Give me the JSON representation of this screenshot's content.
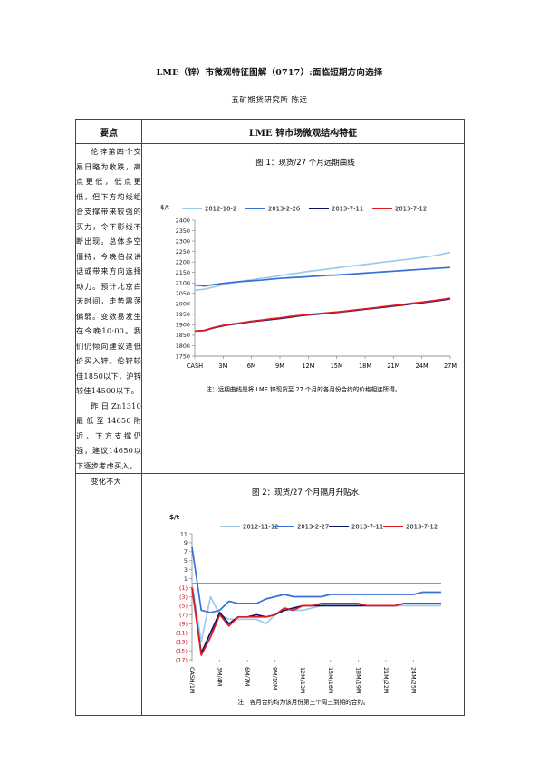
{
  "doc": {
    "title": "LME（锌）市微观特征图解（0717）:面临短期方向选择",
    "author": "五矿期货研究所    陈远"
  },
  "table": {
    "header_left": "要点",
    "header_right": "LME 锌市场微观结构特征",
    "row1_left_p1": "伦锌第四个交易日略为收跌，高点更低，低点更低，但下方均线组合支撑带来较强的买力，令下影线不断出现。总体多空僵持，今晚伯叔讲话或带来方向选择动力。预计北京白天时间，走势震荡偏弱。变数易发生在今晚10:00。我们仍倾向建议逢低价买入锌。伦锌较佳1850以下，沪锌较佳14500以下。",
    "row1_left_p2": "昨日Zn1310最低至14650附近，下方支撑仍强，建议14650以下逐步考虑买入。",
    "row2_left": "变化不大"
  },
  "chart1": {
    "title": "图 1：现货/27 个月远期曲线",
    "note": "注：远期曲线是将 LME 锌现货至 27 个月的各月份合约的价格相连所得。"
  },
  "chart2": {
    "title": "图 2：现货/27 个月隔月升贴水",
    "note": "注：各月合约均为该月份第三个周三到期的合约。"
  },
  "chart_data": [
    {
      "type": "line",
      "title": "图 1：现货/27 个月远期曲线",
      "ylabel": "$/t",
      "ylim": [
        1750,
        2400
      ],
      "yticks": [
        1750,
        1800,
        1850,
        1900,
        1950,
        2000,
        2050,
        2100,
        2150,
        2200,
        2250,
        2300,
        2350,
        2400
      ],
      "x": [
        0,
        1,
        2,
        3,
        4,
        5,
        6,
        7,
        8,
        9,
        10,
        11,
        12,
        13,
        14,
        15,
        16,
        17,
        18,
        19,
        20,
        21,
        22,
        23,
        24,
        25,
        26,
        27
      ],
      "xticks": [
        0,
        3,
        6,
        9,
        12,
        15,
        18,
        21,
        24,
        27
      ],
      "xtick_labels": [
        "CASH",
        "3M",
        "6M",
        "9M",
        "12M",
        "15M",
        "18M",
        "21M",
        "24M",
        "27M"
      ],
      "grid": false,
      "legend": "top",
      "series": [
        {
          "name": "2012-10-2",
          "color": "#9ecae9",
          "values": [
            2065,
            2070,
            2080,
            2092,
            2100,
            2108,
            2115,
            2122,
            2128,
            2135,
            2142,
            2148,
            2155,
            2160,
            2166,
            2172,
            2178,
            2183,
            2188,
            2194,
            2200,
            2205,
            2210,
            2216,
            2222,
            2228,
            2236,
            2246
          ]
        },
        {
          "name": "2013-2-26",
          "color": "#3b6fd8",
          "values": [
            2090,
            2085,
            2092,
            2098,
            2103,
            2107,
            2110,
            2113,
            2118,
            2122,
            2125,
            2127,
            2130,
            2133,
            2136,
            2138,
            2141,
            2144,
            2147,
            2150,
            2153,
            2156,
            2159,
            2162,
            2165,
            2168,
            2171,
            2174
          ]
        },
        {
          "name": "2013-7-11",
          "color": "#0a1466",
          "values": [
            1870,
            1872,
            1885,
            1895,
            1902,
            1908,
            1915,
            1920,
            1925,
            1930,
            1936,
            1942,
            1947,
            1951,
            1955,
            1959,
            1964,
            1969,
            1974,
            1979,
            1984,
            1989,
            1994,
            2000,
            2005,
            2011,
            2017,
            2024
          ]
        },
        {
          "name": "2013-7-12",
          "color": "#e01b24",
          "values": [
            1870,
            1873,
            1887,
            1897,
            1904,
            1910,
            1917,
            1922,
            1928,
            1933,
            1939,
            1944,
            1949,
            1953,
            1957,
            1961,
            1966,
            1971,
            1976,
            1981,
            1987,
            1992,
            1997,
            2003,
            2008,
            2014,
            2020,
            2027
          ]
        }
      ]
    },
    {
      "type": "line",
      "title": "图 2：现货/27 个月隔月升贴水",
      "ylabel": "$/t",
      "ylim": [
        -17,
        11
      ],
      "yticks": [
        11,
        9,
        7,
        5,
        3,
        1,
        -1,
        -3,
        -5,
        -7,
        -9,
        -11,
        -13,
        -15,
        -17
      ],
      "ytick_labels": [
        "11",
        "9",
        "7",
        "5",
        "3",
        "1",
        "(1)",
        "(3)",
        "(5)",
        "(7)",
        "(9)",
        "(11)",
        "(13)",
        "(15)",
        "(17)"
      ],
      "x": [
        0,
        1,
        2,
        3,
        4,
        5,
        6,
        7,
        8,
        9,
        10,
        11,
        12,
        13,
        14,
        15,
        16,
        17,
        18,
        19,
        20,
        21,
        22,
        23,
        24,
        25,
        26,
        27
      ],
      "xticks": [
        0,
        3,
        6,
        9,
        12,
        15,
        18,
        21,
        24
      ],
      "xtick_labels": [
        "CASH/1M",
        "3M/4M",
        "6M/7M",
        "9M/10M",
        "12M/13M",
        "15M/16M",
        "18M/19M",
        "21M/22M",
        "24M/25M"
      ],
      "grid": false,
      "legend": "top",
      "series": [
        {
          "name": "2012-11-12",
          "color": "#9ecae9",
          "values": [
            0,
            -13,
            -3,
            -7,
            -8,
            -8,
            -8,
            -8,
            -9,
            -7,
            -6,
            -6,
            -6,
            -5.5,
            -5,
            -5,
            -5,
            -5,
            -5,
            -5,
            -5,
            -5,
            -5,
            -5,
            -5,
            -5,
            -5,
            -5
          ]
        },
        {
          "name": "2013-2-27",
          "color": "#3b6fd8",
          "values": [
            8,
            -6,
            -6.5,
            -6,
            -4,
            -4.5,
            -4.5,
            -4.5,
            -3.5,
            -3,
            -2.5,
            -3,
            -3,
            -3,
            -3,
            -2.5,
            -2.5,
            -2.5,
            -2.5,
            -2.5,
            -2.5,
            -2.5,
            -2.5,
            -2.5,
            -2.5,
            -2,
            -2,
            -2
          ]
        },
        {
          "name": "2013-7-11",
          "color": "#0a1466",
          "values": [
            -1,
            -15.5,
            -11,
            -6.5,
            -9,
            -7.5,
            -7.5,
            -7,
            -7.5,
            -7,
            -6,
            -5.5,
            -5,
            -5,
            -5,
            -5,
            -5,
            -5,
            -5,
            -5,
            -5,
            -5,
            -5,
            -4.5,
            -4.5,
            -4.5,
            -4.5,
            -4.5
          ]
        },
        {
          "name": "2013-7-12",
          "color": "#e01b24",
          "values": [
            -1,
            -16,
            -12,
            -7,
            -9.5,
            -7.5,
            -7.5,
            -7.5,
            -7.5,
            -7,
            -5.5,
            -6,
            -5,
            -5,
            -4.5,
            -4.5,
            -4.5,
            -4.5,
            -4.5,
            -5,
            -5,
            -5,
            -5,
            -4.5,
            -4.5,
            -4.5,
            -4.5,
            -4.5
          ]
        }
      ]
    }
  ]
}
